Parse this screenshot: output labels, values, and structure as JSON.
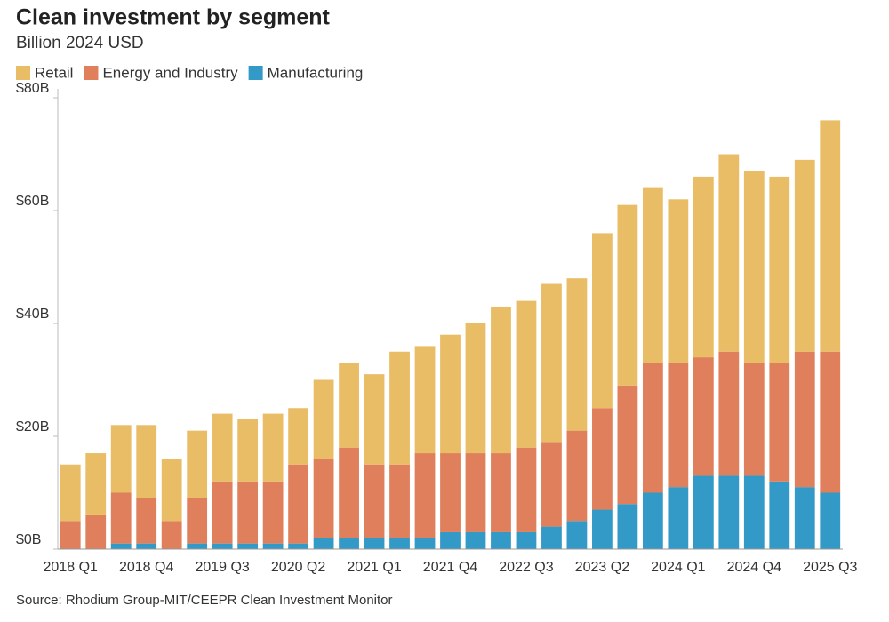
{
  "chart_data": {
    "type": "bar",
    "stacked": true,
    "title": "Clean investment by segment",
    "subtitle": "Billion 2024 USD",
    "source": "Source: Rhodium Group-MIT/CEEPR Clean Investment Monitor",
    "categories": [
      "2018 Q1",
      null,
      null,
      "2018 Q4",
      null,
      null,
      "2019 Q3",
      null,
      null,
      "2020 Q2",
      null,
      null,
      "2021 Q1",
      null,
      null,
      "2021 Q4",
      null,
      null,
      "2022 Q3",
      null,
      null,
      "2023 Q2",
      null,
      null,
      "2024 Q1",
      null,
      null,
      "2024 Q4",
      null,
      null,
      "2025 Q3"
    ],
    "series": [
      {
        "name": "Retail",
        "color": "#e9bc66",
        "values": [
          10,
          11,
          12,
          13,
          11,
          12,
          12,
          11,
          12,
          10,
          14,
          15,
          16,
          20,
          19,
          21,
          23,
          26,
          26,
          28,
          27,
          31,
          32,
          31,
          29,
          32,
          35,
          34,
          33,
          34,
          41
        ]
      },
      {
        "name": "Energy and Industry",
        "color": "#e07f5b",
        "values": [
          5,
          6,
          9,
          8,
          5,
          8,
          11,
          11,
          11,
          14,
          14,
          16,
          13,
          13,
          15,
          14,
          14,
          14,
          15,
          15,
          16,
          18,
          21,
          23,
          22,
          21,
          22,
          20,
          21,
          24,
          25
        ]
      },
      {
        "name": "Manufacturing",
        "color": "#3399c6",
        "values": [
          0,
          0,
          1,
          1,
          0,
          1,
          1,
          1,
          1,
          1,
          2,
          2,
          2,
          2,
          2,
          3,
          3,
          3,
          3,
          4,
          5,
          7,
          8,
          10,
          11,
          13,
          13,
          13,
          12,
          11,
          10
        ]
      }
    ],
    "ylim": [
      0,
      80
    ],
    "yticks": [
      {
        "value": 0,
        "label": "$0B"
      },
      {
        "value": 20,
        "label": "$20B"
      },
      {
        "value": 40,
        "label": "$40B"
      },
      {
        "value": 60,
        "label": "$60B"
      },
      {
        "value": 80,
        "label": "$80B"
      }
    ],
    "grid": false
  }
}
